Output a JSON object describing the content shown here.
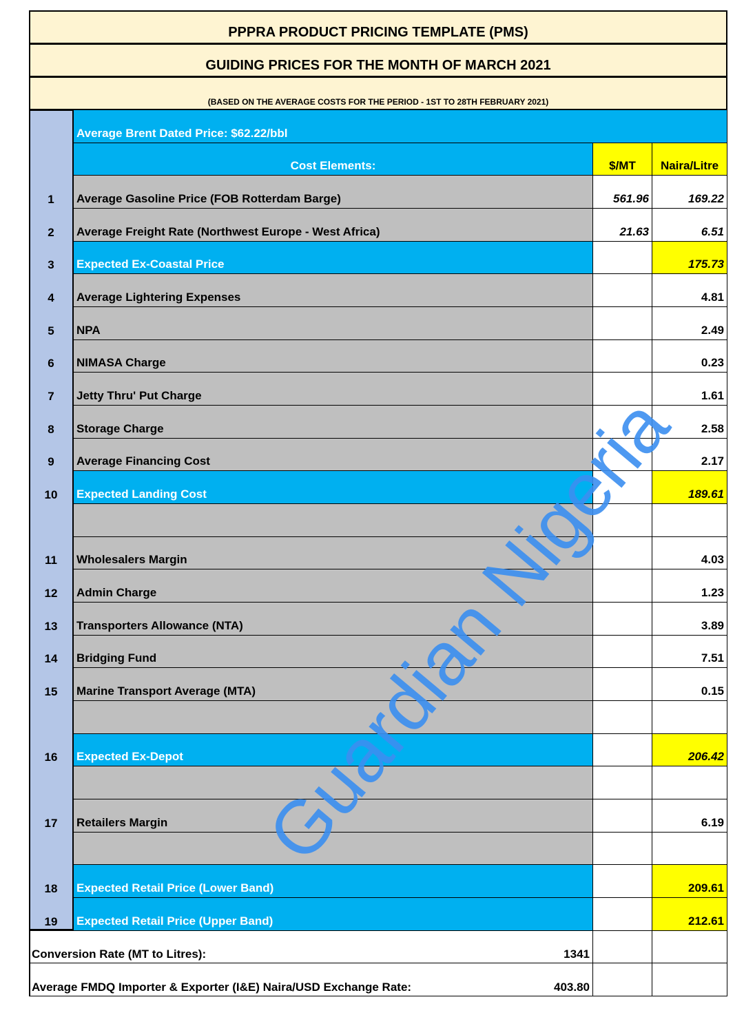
{
  "header": {
    "title": "PPPRA PRODUCT PRICING TEMPLATE (PMS)",
    "subtitle": "GUIDING PRICES FOR THE MONTH OF MARCH 2021",
    "basis": "(BASED ON THE AVERAGE COSTS FOR THE PERIOD - 1ST TO 28TH FEBRUARY 2021)"
  },
  "brent": "Average Brent Dated Price: $62.22/bbl",
  "table": {
    "columns": [
      "Cost Elements:",
      "$/MT",
      "Naira/Litre"
    ],
    "rows": [
      {
        "no": "1",
        "item": "Average Gasoline Price (FOB Rotterdam Barge)",
        "usd_mt": "561.96",
        "naira_litre": "169.22",
        "italic": true
      },
      {
        "no": "2",
        "item": "Average Freight Rate (Northwest Europe - West Africa)",
        "usd_mt": "21.63",
        "naira_litre": "6.51",
        "italic": true
      },
      {
        "no": "3",
        "item": "Expected Ex-Coastal Price",
        "naira_litre": "175.73",
        "highlight": true,
        "italic": true
      },
      {
        "no": "4",
        "item": "Average Lightering Expenses",
        "naira_litre": "4.81"
      },
      {
        "no": "5",
        "item": "NPA",
        "naira_litre": "2.49"
      },
      {
        "no": "6",
        "item": "NIMASA Charge",
        "naira_litre": "0.23"
      },
      {
        "no": "7",
        "item": "Jetty Thru' Put Charge",
        "naira_litre": "1.61"
      },
      {
        "no": "8",
        "item": "Storage Charge",
        "naira_litre": "2.58"
      },
      {
        "no": "9",
        "item": "Average Financing Cost",
        "naira_litre": "2.17"
      },
      {
        "no": "10",
        "item": "Expected Landing Cost",
        "naira_litre": "189.61",
        "highlight": true,
        "italic": true
      },
      null,
      {
        "no": "11",
        "item": "Wholesalers Margin",
        "naira_litre": "4.03"
      },
      {
        "no": "12",
        "item": "Admin Charge",
        "naira_litre": "1.23"
      },
      {
        "no": "13",
        "item": "Transporters Allowance (NTA)",
        "naira_litre": "3.89"
      },
      {
        "no": "14",
        "item": "Bridging Fund",
        "naira_litre": "7.51"
      },
      {
        "no": "15",
        "item": "Marine Transport Average (MTA)",
        "naira_litre": "0.15"
      },
      null,
      {
        "no": "16",
        "item": "Expected Ex-Depot",
        "naira_litre": "206.42",
        "highlight": true,
        "italic": true
      },
      null,
      {
        "no": "17",
        "item": "Retailers Margin",
        "naira_litre": "6.19"
      },
      null,
      {
        "no": "18",
        "item": "Expected Retail Price (Lower Band)",
        "naira_litre": "209.61",
        "highlight": true
      },
      {
        "no": "19",
        "item": "Expected Retail Price (Upper Band)",
        "naira_litre": "212.61",
        "highlight": true
      }
    ]
  },
  "footer": [
    {
      "label": "Conversion Rate (MT to Litres):",
      "value": "1341"
    },
    {
      "label": "Average FMDQ Importer & Exporter (I&E) Naira/USD Exchange Rate:",
      "value": "403.80"
    }
  ],
  "watermark": "Guardian Nigeria"
}
